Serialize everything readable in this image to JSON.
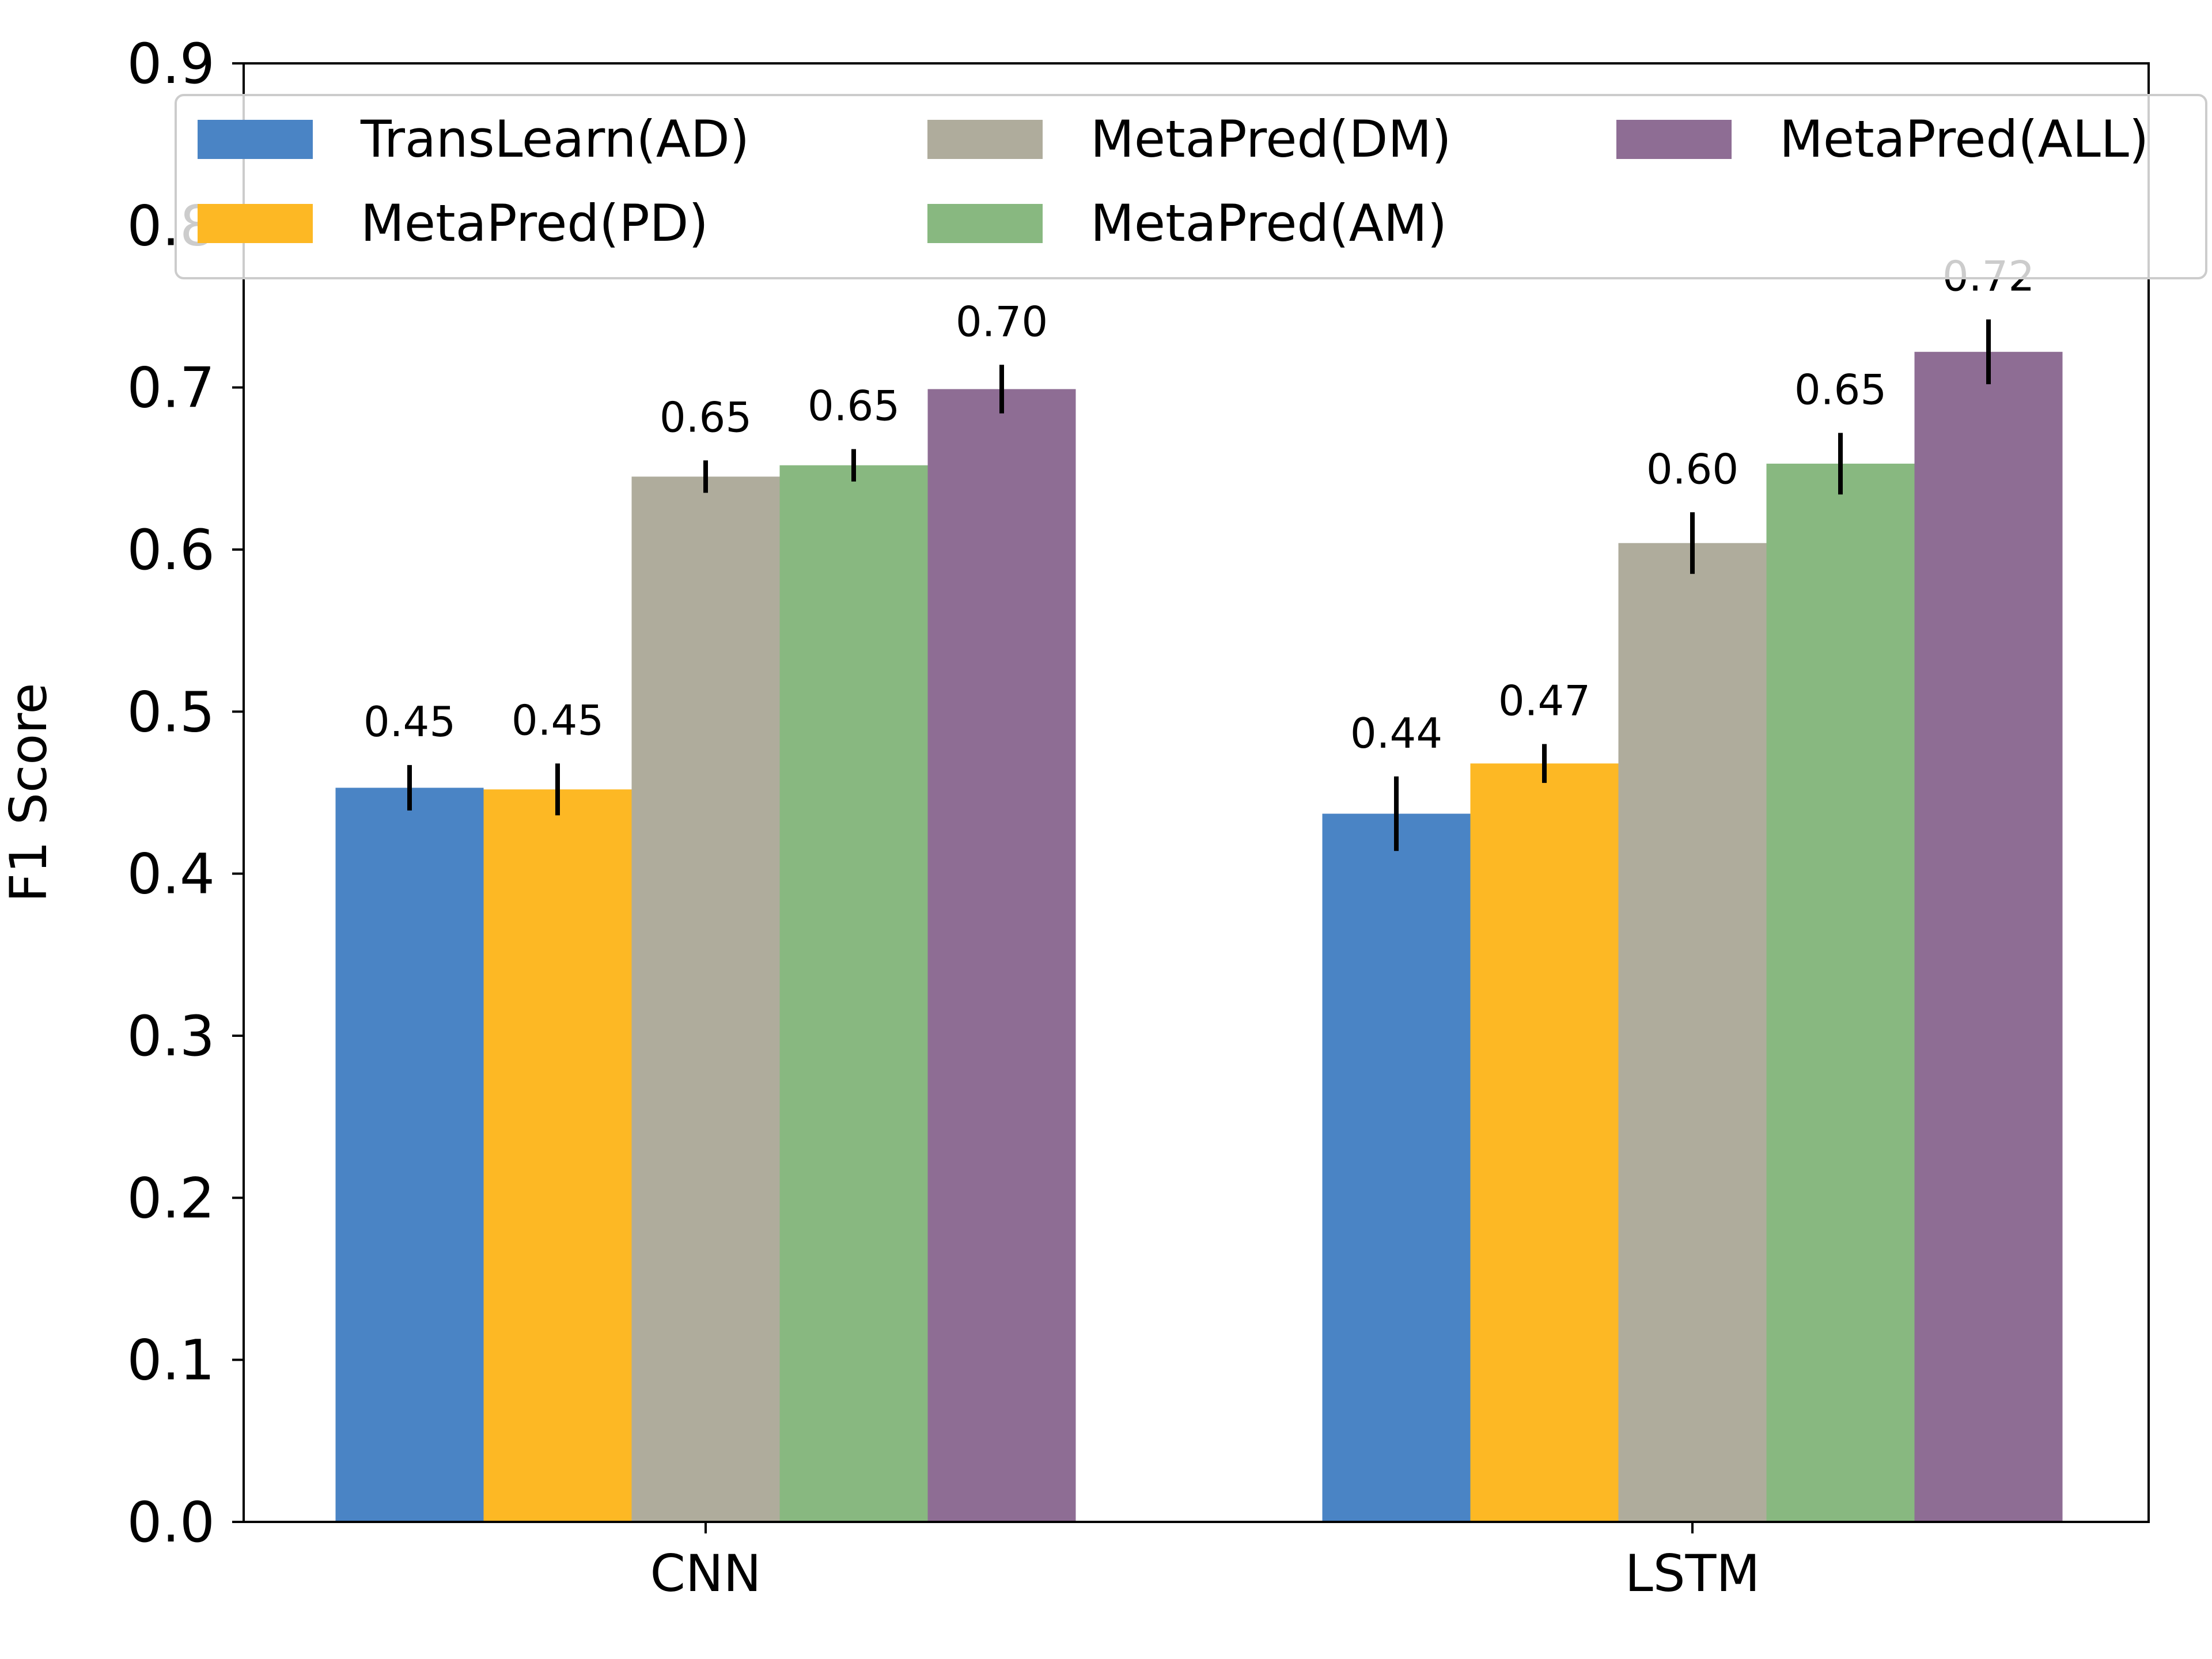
{
  "chart_data": {
    "type": "bar",
    "title": "",
    "xlabel": "",
    "ylabel": "F1 Score",
    "ylim": [
      0,
      0.9
    ],
    "yticks": [
      "0.0",
      "0.1",
      "0.2",
      "0.3",
      "0.4",
      "0.5",
      "0.6",
      "0.7",
      "0.8",
      "0.9"
    ],
    "grid": false,
    "legend_position": "top",
    "categories": [
      "CNN",
      "LSTM"
    ],
    "series": [
      {
        "name": "TransLearn(AD)",
        "color": "#4a84c5",
        "values": [
          0.453,
          0.437
        ],
        "errors": [
          0.014,
          0.023
        ],
        "labels": [
          "0.45",
          "0.44"
        ]
      },
      {
        "name": "MetaPred(PD)",
        "color": "#fdb824",
        "values": [
          0.452,
          0.468
        ],
        "errors": [
          0.016,
          0.012
        ],
        "labels": [
          "0.45",
          "0.47"
        ]
      },
      {
        "name": "MetaPred(DM)",
        "color": "#afac9c",
        "values": [
          0.645,
          0.604
        ],
        "errors": [
          0.01,
          0.019
        ],
        "labels": [
          "0.65",
          "0.60"
        ]
      },
      {
        "name": "MetaPred(AM)",
        "color": "#88b880",
        "values": [
          0.652,
          0.653
        ],
        "errors": [
          0.01,
          0.019
        ],
        "labels": [
          "0.65",
          "0.65"
        ]
      },
      {
        "name": "MetaPred(ALL)",
        "color": "#8e6d94",
        "values": [
          0.699,
          0.722
        ],
        "errors": [
          0.015,
          0.02
        ],
        "labels": [
          "0.70",
          "0.72"
        ]
      }
    ]
  }
}
